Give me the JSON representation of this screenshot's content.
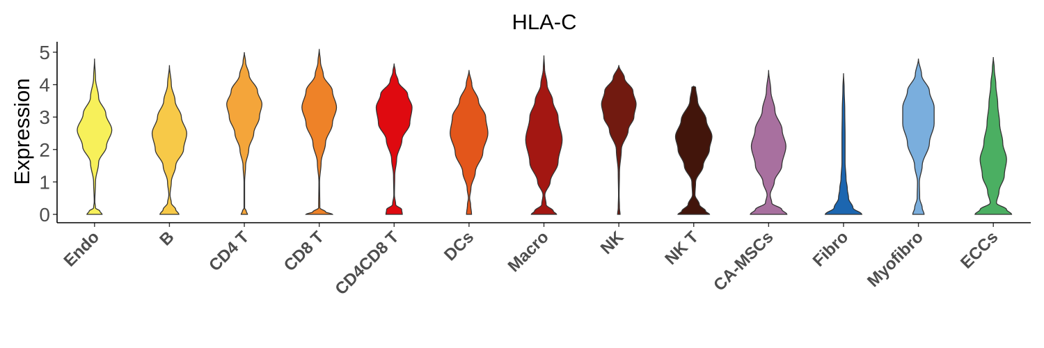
{
  "chart_data": {
    "type": "violin",
    "title": "HLA-C",
    "xlabel": "",
    "ylabel": "Expression",
    "ylim": [
      -0.25,
      5.3
    ],
    "yticks": [
      0,
      1,
      2,
      3,
      4,
      5
    ],
    "grid": false,
    "legend": "none",
    "categories": [
      "Endo",
      "B",
      "CD4 T",
      "CD8 T",
      "CD4CD8 T",
      "DCs",
      "Macro",
      "NK",
      "NK T",
      "CA-MSCs",
      "Fibro",
      "Myofibro",
      "ECCs"
    ],
    "colors": [
      "#F7F05A",
      "#F7C948",
      "#F4A53A",
      "#EE8228",
      "#DF0A10",
      "#E3561B",
      "#A31712",
      "#711A10",
      "#42150B",
      "#A8709F",
      "#1C66B0",
      "#7AAEDD",
      "#4BAF62"
    ],
    "series": [
      {
        "category": "Endo",
        "ymin": 0,
        "ymax": 4.8,
        "profile": [
          [
            0,
            0.24
          ],
          [
            0.1,
            0.17
          ],
          [
            0.2,
            0.03
          ],
          [
            0.4,
            0.01
          ],
          [
            1,
            0.03
          ],
          [
            1.6,
            0.13
          ],
          [
            2.1,
            0.38
          ],
          [
            2.6,
            0.55
          ],
          [
            3.1,
            0.36
          ],
          [
            3.6,
            0.13
          ],
          [
            4.2,
            0.03
          ],
          [
            4.8,
            0
          ]
        ]
      },
      {
        "category": "B",
        "ymin": 0,
        "ymax": 4.6,
        "profile": [
          [
            0,
            0.3
          ],
          [
            0.15,
            0.2
          ],
          [
            0.35,
            0.06
          ],
          [
            0.6,
            0.02
          ],
          [
            1,
            0.06
          ],
          [
            1.5,
            0.2
          ],
          [
            2,
            0.45
          ],
          [
            2.5,
            0.55
          ],
          [
            3,
            0.38
          ],
          [
            3.5,
            0.18
          ],
          [
            4,
            0.06
          ],
          [
            4.6,
            0
          ]
        ]
      },
      {
        "category": "CD4 T",
        "ymin": 0,
        "ymax": 5.0,
        "profile": [
          [
            0,
            0.1
          ],
          [
            0.1,
            0.06
          ],
          [
            0.2,
            0.01
          ],
          [
            1,
            0.01
          ],
          [
            1.5,
            0.04
          ],
          [
            2,
            0.14
          ],
          [
            2.5,
            0.3
          ],
          [
            3,
            0.48
          ],
          [
            3.4,
            0.56
          ],
          [
            3.8,
            0.42
          ],
          [
            4.3,
            0.15
          ],
          [
            4.7,
            0.04
          ],
          [
            5,
            0
          ]
        ]
      },
      {
        "category": "CD8 T",
        "ymin": 0,
        "ymax": 5.1,
        "profile": [
          [
            0,
            0.42
          ],
          [
            0.08,
            0.2
          ],
          [
            0.2,
            0.02
          ],
          [
            1,
            0.01
          ],
          [
            1.6,
            0.06
          ],
          [
            2.2,
            0.2
          ],
          [
            2.8,
            0.42
          ],
          [
            3.3,
            0.55
          ],
          [
            3.8,
            0.42
          ],
          [
            4.3,
            0.13
          ],
          [
            4.7,
            0.04
          ],
          [
            5.1,
            0
          ]
        ]
      },
      {
        "category": "CD4CD8 T",
        "ymin": 0,
        "ymax": 4.65,
        "profile": [
          [
            0,
            0.26
          ],
          [
            0.15,
            0.24
          ],
          [
            0.3,
            0.05
          ],
          [
            0.6,
            0.01
          ],
          [
            1.2,
            0.02
          ],
          [
            1.7,
            0.08
          ],
          [
            2.3,
            0.25
          ],
          [
            2.8,
            0.5
          ],
          [
            3.3,
            0.57
          ],
          [
            3.7,
            0.43
          ],
          [
            4.1,
            0.13
          ],
          [
            4.4,
            0.04
          ],
          [
            4.65,
            0
          ]
        ]
      },
      {
        "category": "DCs",
        "ymin": 0,
        "ymax": 4.45,
        "profile": [
          [
            0,
            0.08
          ],
          [
            0.3,
            0.05
          ],
          [
            0.5,
            0.02
          ],
          [
            0.8,
            0.06
          ],
          [
            1.3,
            0.2
          ],
          [
            1.9,
            0.44
          ],
          [
            2.5,
            0.6
          ],
          [
            3,
            0.53
          ],
          [
            3.5,
            0.3
          ],
          [
            4,
            0.09
          ],
          [
            4.45,
            0
          ]
        ]
      },
      {
        "category": "Macro",
        "ymin": 0,
        "ymax": 4.9,
        "profile": [
          [
            0,
            0.4
          ],
          [
            0.1,
            0.3
          ],
          [
            0.3,
            0.07
          ],
          [
            0.6,
            0.03
          ],
          [
            1,
            0.2
          ],
          [
            1.6,
            0.45
          ],
          [
            2.3,
            0.58
          ],
          [
            3,
            0.45
          ],
          [
            3.5,
            0.28
          ],
          [
            4,
            0.1
          ],
          [
            4.5,
            0.02
          ],
          [
            4.9,
            0
          ]
        ]
      },
      {
        "category": "NK",
        "ymin": 0,
        "ymax": 4.6,
        "profile": [
          [
            0,
            0.04
          ],
          [
            0.2,
            0.02
          ],
          [
            0.6,
            0.01
          ],
          [
            1.3,
            0.02
          ],
          [
            2,
            0.08
          ],
          [
            2.6,
            0.3
          ],
          [
            3,
            0.48
          ],
          [
            3.4,
            0.55
          ],
          [
            3.8,
            0.45
          ],
          [
            4.2,
            0.18
          ],
          [
            4.6,
            0
          ]
        ]
      },
      {
        "category": "NK T",
        "ymin": 0,
        "ymax": 3.95,
        "profile": [
          [
            0,
            0.5
          ],
          [
            0.1,
            0.38
          ],
          [
            0.3,
            0.18
          ],
          [
            0.6,
            0.04
          ],
          [
            1,
            0.06
          ],
          [
            1.5,
            0.3
          ],
          [
            2,
            0.5
          ],
          [
            2.4,
            0.58
          ],
          [
            2.9,
            0.4
          ],
          [
            3.5,
            0.12
          ],
          [
            3.92,
            0.06
          ],
          [
            3.95,
            0
          ]
        ]
      },
      {
        "category": "CA-MSCs",
        "ymin": 0,
        "ymax": 4.45,
        "profile": [
          [
            0,
            0.58
          ],
          [
            0.15,
            0.42
          ],
          [
            0.35,
            0.1
          ],
          [
            0.6,
            0.05
          ],
          [
            1,
            0.18
          ],
          [
            1.5,
            0.42
          ],
          [
            2.1,
            0.55
          ],
          [
            2.6,
            0.43
          ],
          [
            3.2,
            0.2
          ],
          [
            3.8,
            0.07
          ],
          [
            4.45,
            0
          ]
        ]
      },
      {
        "category": "Fibro",
        "ymin": 0,
        "ymax": 4.35,
        "profile": [
          [
            0,
            0.58
          ],
          [
            0.2,
            0.3
          ],
          [
            0.5,
            0.16
          ],
          [
            0.8,
            0.12
          ],
          [
            1.1,
            0.08
          ],
          [
            1.6,
            0.05
          ],
          [
            2.4,
            0.05
          ],
          [
            3.2,
            0.04
          ],
          [
            3.9,
            0.02
          ],
          [
            4.35,
            0
          ]
        ]
      },
      {
        "category": "Myofibro",
        "ymin": 0,
        "ymax": 4.8,
        "profile": [
          [
            0,
            0.18
          ],
          [
            0.2,
            0.12
          ],
          [
            0.5,
            0.04
          ],
          [
            1,
            0.03
          ],
          [
            1.5,
            0.12
          ],
          [
            2.2,
            0.35
          ],
          [
            2.8,
            0.5
          ],
          [
            3.3,
            0.5
          ],
          [
            3.8,
            0.35
          ],
          [
            4.3,
            0.1
          ],
          [
            4.8,
            0
          ]
        ]
      },
      {
        "category": "ECCs",
        "ymin": 0,
        "ymax": 4.85,
        "profile": [
          [
            0,
            0.58
          ],
          [
            0.15,
            0.42
          ],
          [
            0.35,
            0.1
          ],
          [
            0.7,
            0.18
          ],
          [
            1.2,
            0.35
          ],
          [
            1.7,
            0.42
          ],
          [
            2.2,
            0.3
          ],
          [
            2.8,
            0.2
          ],
          [
            3.4,
            0.14
          ],
          [
            4,
            0.08
          ],
          [
            4.5,
            0.03
          ],
          [
            4.85,
            0
          ]
        ]
      }
    ]
  }
}
